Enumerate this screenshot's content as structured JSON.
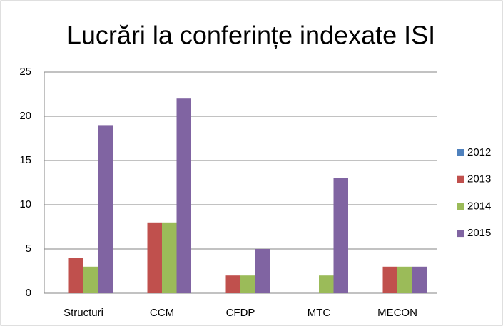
{
  "chart_data": {
    "type": "bar",
    "title": "Lucrări la conferințe indexate ISI",
    "categories": [
      "Structuri",
      "CCM",
      "CFDP",
      "MTC",
      "MECON"
    ],
    "series": [
      {
        "name": "2012",
        "color": "#4f81bd",
        "values": [
          0,
          0,
          0,
          0,
          0
        ]
      },
      {
        "name": "2013",
        "color": "#c0504d",
        "values": [
          4,
          8,
          2,
          0,
          3
        ]
      },
      {
        "name": "2014",
        "color": "#9bbb59",
        "values": [
          3,
          8,
          2,
          2,
          3
        ]
      },
      {
        "name": "2015",
        "color": "#8064a2",
        "values": [
          19,
          22,
          5,
          13,
          3
        ]
      }
    ],
    "ylim": [
      0,
      25
    ],
    "yticks": [
      0,
      5,
      10,
      15,
      20,
      25
    ],
    "grid": true,
    "legend": "right"
  }
}
